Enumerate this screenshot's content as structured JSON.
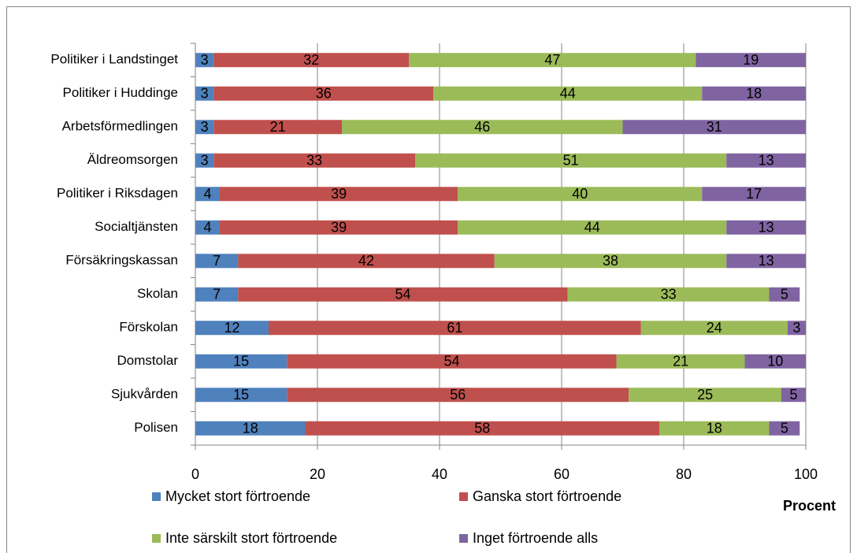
{
  "chart_data": {
    "type": "stacked_barh",
    "categories": [
      "Politiker i Landstinget",
      "Politiker i Huddinge",
      "Arbetsförmedlingen",
      "Äldreomsorgen",
      "Politiker i Riksdagen",
      "Socialtjänsten",
      "Försäkringskassan",
      "Skolan",
      "Förskolan",
      "Domstolar",
      "Sjukvården",
      "Polisen"
    ],
    "series": [
      {
        "name": "Mycket stort förtroende",
        "color": "#4f81bd",
        "values": [
          3,
          3,
          3,
          3,
          4,
          4,
          7,
          7,
          12,
          15,
          15,
          18
        ]
      },
      {
        "name": "Ganska stort förtroende",
        "color": "#c0504d",
        "values": [
          32,
          36,
          21,
          33,
          39,
          39,
          42,
          54,
          61,
          54,
          56,
          58
        ]
      },
      {
        "name": "Inte särskilt stort förtroende",
        "color": "#9bbb59",
        "values": [
          47,
          44,
          46,
          51,
          40,
          44,
          38,
          33,
          24,
          21,
          25,
          18
        ]
      },
      {
        "name": "Inget förtroende alls",
        "color": "#8064a2",
        "values": [
          19,
          18,
          31,
          13,
          17,
          13,
          13,
          5,
          3,
          10,
          5,
          5
        ]
      }
    ],
    "xlabel": "Procent",
    "xlim": [
      0,
      100
    ],
    "xticks": [
      0,
      20,
      40,
      60,
      80,
      100
    ],
    "grid": true
  }
}
